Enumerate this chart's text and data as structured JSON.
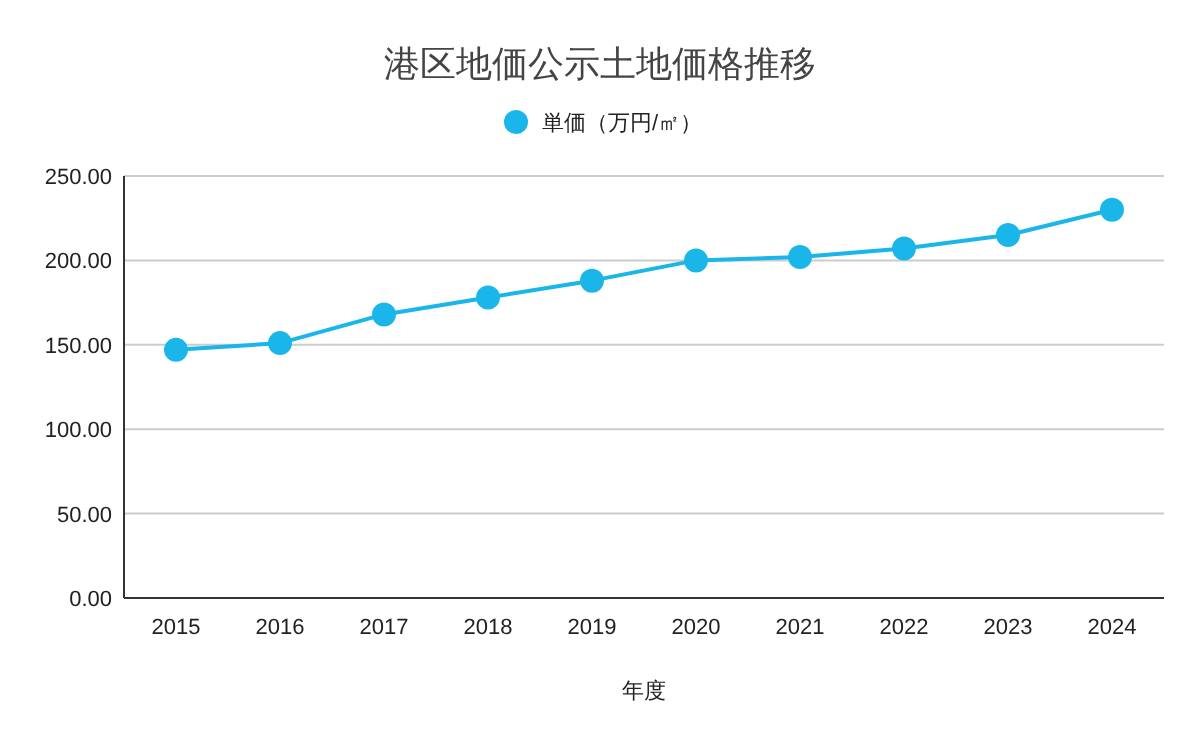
{
  "chart_data": {
    "type": "line",
    "title": "港区地価公示土地価格推移",
    "xlabel": "年度",
    "categories": [
      "2015",
      "2016",
      "2017",
      "2018",
      "2019",
      "2020",
      "2021",
      "2022",
      "2023",
      "2024"
    ],
    "series": [
      {
        "name": "単価（万円/㎡）",
        "color": "#1ab6e9",
        "values": [
          147,
          151,
          168,
          178,
          188,
          200,
          202,
          207,
          215,
          230
        ]
      }
    ],
    "ylim": [
      0,
      250
    ],
    "yticks": [
      {
        "value": 0,
        "label": "0.00"
      },
      {
        "value": 50,
        "label": "50.00"
      },
      {
        "value": 100,
        "label": "100.00"
      },
      {
        "value": 150,
        "label": "150.00"
      },
      {
        "value": 200,
        "label": "200.00"
      },
      {
        "value": 250,
        "label": "250.00"
      }
    ],
    "grid": "y",
    "legend": "top",
    "marker": "circle",
    "line_style": "solid"
  }
}
